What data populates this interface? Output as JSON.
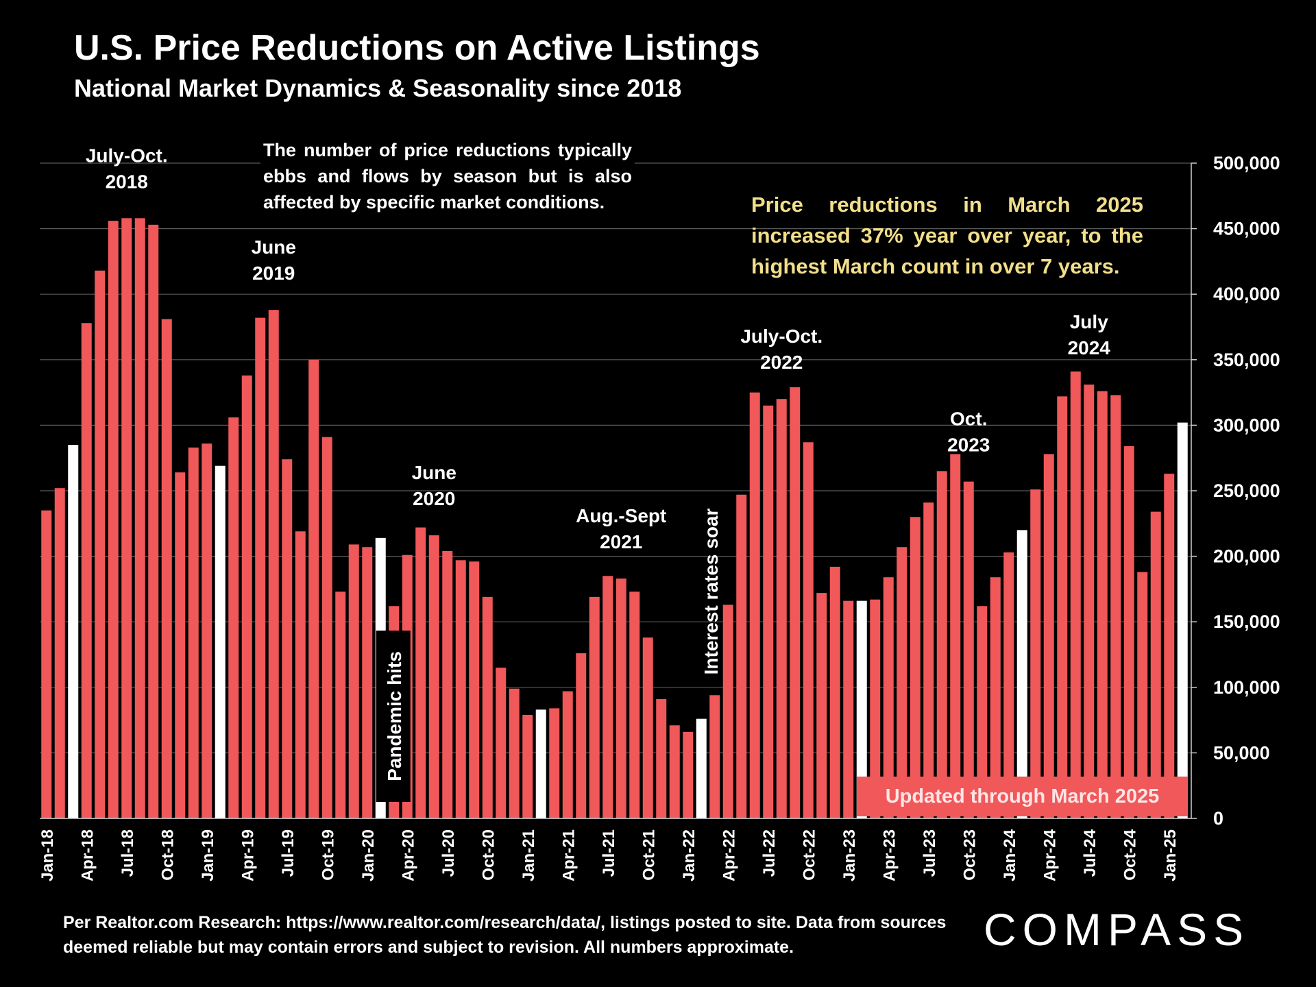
{
  "header": {
    "title": "U.S. Price Reductions on Active Listings",
    "subtitle": "National Market Dynamics & Seasonality since 2018"
  },
  "annotations": {
    "note": "The number of price reductions typically ebbs and flows by season but is also affected by specific market conditions.",
    "highlight": "Price reductions in March 2025 increased 37% year over year, to the highest March count in over 7 years.",
    "updated": "Updated through March 2025"
  },
  "footer": {
    "source": "Per Realtor.com Research:  https://www.realtor.com/research/data/, listings posted to site. Data from sources deemed reliable but may contain errors and subject to revision. All numbers approximate."
  },
  "logo": {
    "text": "COMPASS"
  },
  "colors": {
    "background": "#000000",
    "bar": "#f0585a",
    "bar_highlight": "#ffffff",
    "gridline": "#5a5a5a",
    "highlight_text": "#f2df8a"
  },
  "chart_data": {
    "type": "bar",
    "x_tick_labels": [
      "Jan-18",
      "Apr-18",
      "Jul-18",
      "Oct-18",
      "Jan-19",
      "Apr-19",
      "Jul-19",
      "Oct-19",
      "Jan-20",
      "Apr-20",
      "Jul-20",
      "Oct-20",
      "Jan-21",
      "Apr-21",
      "Jul-21",
      "Oct-21",
      "Jan-22",
      "Apr-22",
      "Jul-22",
      "Oct-22",
      "Jan-23",
      "Apr-23",
      "Jul-23",
      "Oct-23",
      "Jan-24",
      "Apr-24",
      "Jul-24",
      "Oct-24",
      "Jan-25"
    ],
    "values": [
      235000,
      252000,
      285000,
      378000,
      418000,
      456000,
      458000,
      458000,
      453000,
      381000,
      264000,
      283000,
      286000,
      269000,
      306000,
      338000,
      382000,
      388000,
      274000,
      219000,
      350000,
      291000,
      173000,
      209000,
      207000,
      214000,
      162000,
      201000,
      222000,
      216000,
      204000,
      197000,
      196000,
      169000,
      115000,
      99000,
      79000,
      83000,
      84000,
      97000,
      126000,
      169000,
      185000,
      183000,
      173000,
      138000,
      91000,
      71000,
      66000,
      76000,
      94000,
      163000,
      247000,
      325000,
      315000,
      320000,
      329000,
      287000,
      172000,
      192000,
      166000,
      166000,
      167000,
      184000,
      207000,
      230000,
      241000,
      265000,
      278000,
      257000,
      162000,
      184000,
      203000,
      220000,
      251000,
      278000,
      322000,
      341000,
      331000,
      326000,
      323000,
      284000,
      188000,
      234000,
      263000,
      302000
    ],
    "white_bar_indices": [
      2,
      13,
      25,
      37,
      49,
      61,
      73,
      85
    ],
    "ylim": [
      0,
      500000
    ],
    "y_ticks": [
      0,
      50000,
      100000,
      150000,
      200000,
      250000,
      300000,
      350000,
      400000,
      450000,
      500000
    ],
    "y_tick_labels": [
      "0",
      "50,000",
      "100,000",
      "150,000",
      "200,000",
      "250,000",
      "300,000",
      "350,000",
      "400,000",
      "450,000",
      "500,000"
    ],
    "y_axis_side": "right",
    "grid": true,
    "callouts": [
      {
        "lines": [
          "July-Oct.",
          "2018"
        ],
        "bar_index": 6
      },
      {
        "lines": [
          "June",
          "2019"
        ],
        "bar_index": 17
      },
      {
        "lines": [
          "June",
          "2020"
        ],
        "bar_index": 29
      },
      {
        "lines": [
          "Aug.-Sept",
          "2021"
        ],
        "bar_index": 43
      },
      {
        "lines": [
          "July-Oct.",
          "2022"
        ],
        "bar_index": 55
      },
      {
        "lines": [
          "Oct.",
          "2023"
        ],
        "bar_index": 69
      },
      {
        "lines": [
          "July",
          "2024"
        ],
        "bar_index": 78
      }
    ],
    "vertical_annotations": [
      {
        "text": "Pandemic hits",
        "bar_index": 26
      },
      {
        "text": "Interest rates soar",
        "bar_index": 50
      }
    ]
  }
}
